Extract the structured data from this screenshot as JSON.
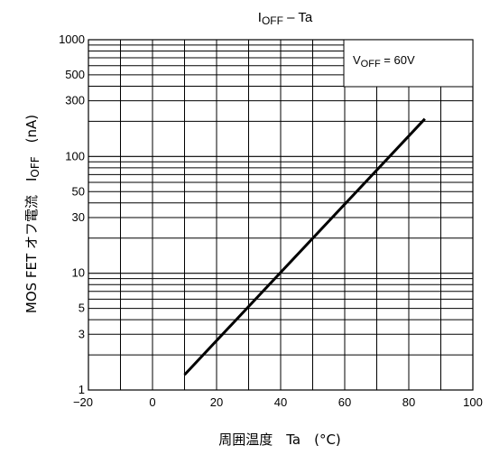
{
  "chart_data": {
    "type": "line",
    "title": "IOFF – Ta",
    "title_main": "I",
    "title_sub": "OFF",
    "title_rest": " – Ta",
    "xlabel": "周囲温度　Ta　(°C)",
    "ylabel": "MOS FET オフ電流　IOFF　(nA)",
    "ylabel_main": "MOS FET オフ電流　I",
    "ylabel_sub": "OFF",
    "ylabel_rest": "　(nA)",
    "x_scale": "linear",
    "y_scale": "log",
    "xlim": [
      -20,
      100
    ],
    "ylim": [
      1,
      1000
    ],
    "x_ticks": [
      -20,
      0,
      20,
      40,
      60,
      80,
      100
    ],
    "x_tick_labels": [
      "−20",
      "0",
      "20",
      "40",
      "60",
      "80",
      "100"
    ],
    "x_minor_step": 10,
    "y_ticks": [
      1,
      3,
      5,
      10,
      30,
      50,
      100,
      300,
      500,
      1000
    ],
    "y_tick_labels": [
      "1",
      "3",
      "5",
      "10",
      "30",
      "50",
      "100",
      "300",
      "500",
      "1000"
    ],
    "grid": true,
    "legend_position": "top-right",
    "annotation": {
      "main": "V",
      "sub": "OFF",
      "rest": " = 60V"
    },
    "series": [
      {
        "x": [
          10,
          85
        ],
        "y": [
          1.35,
          210
        ]
      }
    ]
  }
}
